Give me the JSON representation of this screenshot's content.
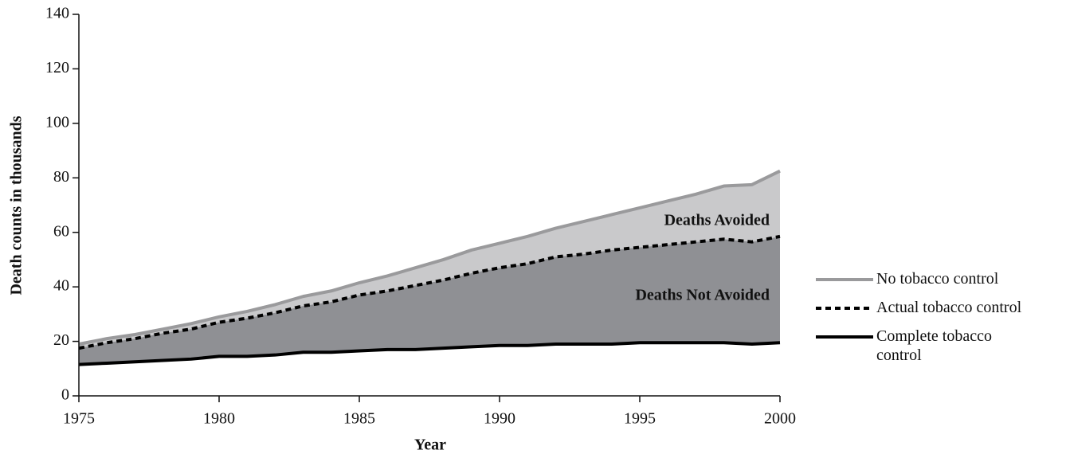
{
  "chart_data": {
    "type": "area-line",
    "x_label": "Year",
    "y_label": "Death counts in thousands",
    "x": [
      1975,
      1976,
      1977,
      1978,
      1979,
      1980,
      1981,
      1982,
      1983,
      1984,
      1985,
      1986,
      1987,
      1988,
      1989,
      1990,
      1991,
      1992,
      1993,
      1994,
      1995,
      1996,
      1997,
      1998,
      1999,
      2000
    ],
    "series": [
      {
        "name": "No tobacco control",
        "color": "#9a9a9c",
        "fill": "#c9c9cb",
        "line_style": "solid",
        "values": [
          19,
          21,
          22.5,
          24.5,
          26.5,
          29,
          31,
          33.5,
          36.5,
          38.5,
          41.5,
          44,
          47,
          50,
          53.5,
          56,
          58.5,
          61.5,
          64,
          66.5,
          69,
          71.5,
          74,
          77,
          77.5,
          82.5
        ]
      },
      {
        "name": "Actual tobacco control",
        "color": "#000000",
        "fill": "#8f9094",
        "line_style": "dashed",
        "values": [
          17.5,
          19.5,
          21,
          23,
          24.5,
          27,
          28.5,
          30.5,
          33,
          34.5,
          37,
          38.5,
          40.5,
          42.5,
          45,
          47,
          48.5,
          51,
          52,
          53.5,
          54.5,
          55.5,
          56.5,
          57.5,
          56.5,
          58.5
        ]
      },
      {
        "name": "Complete tobacco control",
        "color": "#000000",
        "line_style": "solid",
        "values": [
          11.5,
          12,
          12.5,
          13,
          13.5,
          14.5,
          14.5,
          15,
          16,
          16,
          16.5,
          17,
          17,
          17.5,
          18,
          18.5,
          18.5,
          19,
          19,
          19,
          19.5,
          19.5,
          19.5,
          19.5,
          19,
          19.5
        ]
      }
    ],
    "annotations": [
      "Deaths Avoided",
      "Deaths Not Avoided"
    ],
    "xlim": [
      1975,
      2000
    ],
    "xticks": [
      1975,
      1980,
      1985,
      1990,
      1995,
      2000
    ],
    "ylim": [
      0,
      140
    ],
    "yticks": [
      0,
      20,
      40,
      60,
      80,
      100,
      120,
      140
    ],
    "grid": false,
    "legend": "right"
  }
}
